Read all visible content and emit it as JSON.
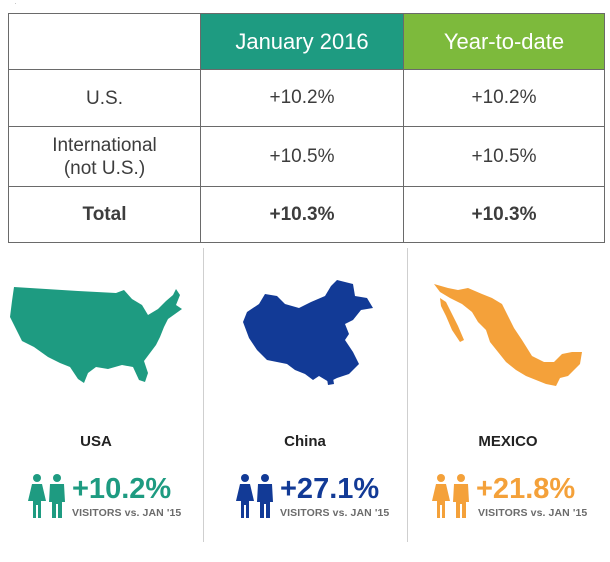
{
  "table": {
    "headers": [
      "",
      "January 2016",
      "Year-to-date"
    ],
    "rows": [
      {
        "label_lines": [
          "U.S."
        ],
        "january": "+10.2%",
        "ytd": "+10.2%",
        "bold": false
      },
      {
        "label_lines": [
          "International",
          "(not U.S.)"
        ],
        "january": "+10.5%",
        "ytd": "+10.5%",
        "bold": false
      },
      {
        "label_lines": [
          "Total"
        ],
        "january": "+10.3%",
        "ytd": "+10.3%",
        "bold": true
      }
    ],
    "colors": {
      "january_header": "#1e9b81",
      "ytd_header": "#7dba3c"
    }
  },
  "countries": [
    {
      "name": "USA",
      "change": "+10.2%",
      "note": "VISITORS vs. JAN '15",
      "color": "#1e9b81",
      "icon": "people-icon",
      "map_icon": "usa-map-icon"
    },
    {
      "name": "China",
      "change": "+27.1%",
      "note": "VISITORS vs. JAN '15",
      "color": "#123a96",
      "icon": "people-icon",
      "map_icon": "china-map-icon"
    },
    {
      "name": "MEXICO",
      "change": "+21.8%",
      "note": "VISITORS vs. JAN '15",
      "color": "#f4a13a",
      "icon": "people-icon",
      "map_icon": "mexico-map-icon"
    }
  ],
  "chart_data": {
    "type": "table",
    "columns": [
      "",
      "January 2016",
      "Year-to-date"
    ],
    "rows": [
      [
        "U.S.",
        "+10.2%",
        "+10.2%"
      ],
      [
        "International (not U.S.)",
        "+10.5%",
        "+10.5%"
      ],
      [
        "Total",
        "+10.3%",
        "+10.3%"
      ]
    ],
    "country_changes": [
      {
        "country": "USA",
        "value": 10.2
      },
      {
        "country": "China",
        "value": 27.1
      },
      {
        "country": "MEXICO",
        "value": 21.8
      }
    ]
  }
}
